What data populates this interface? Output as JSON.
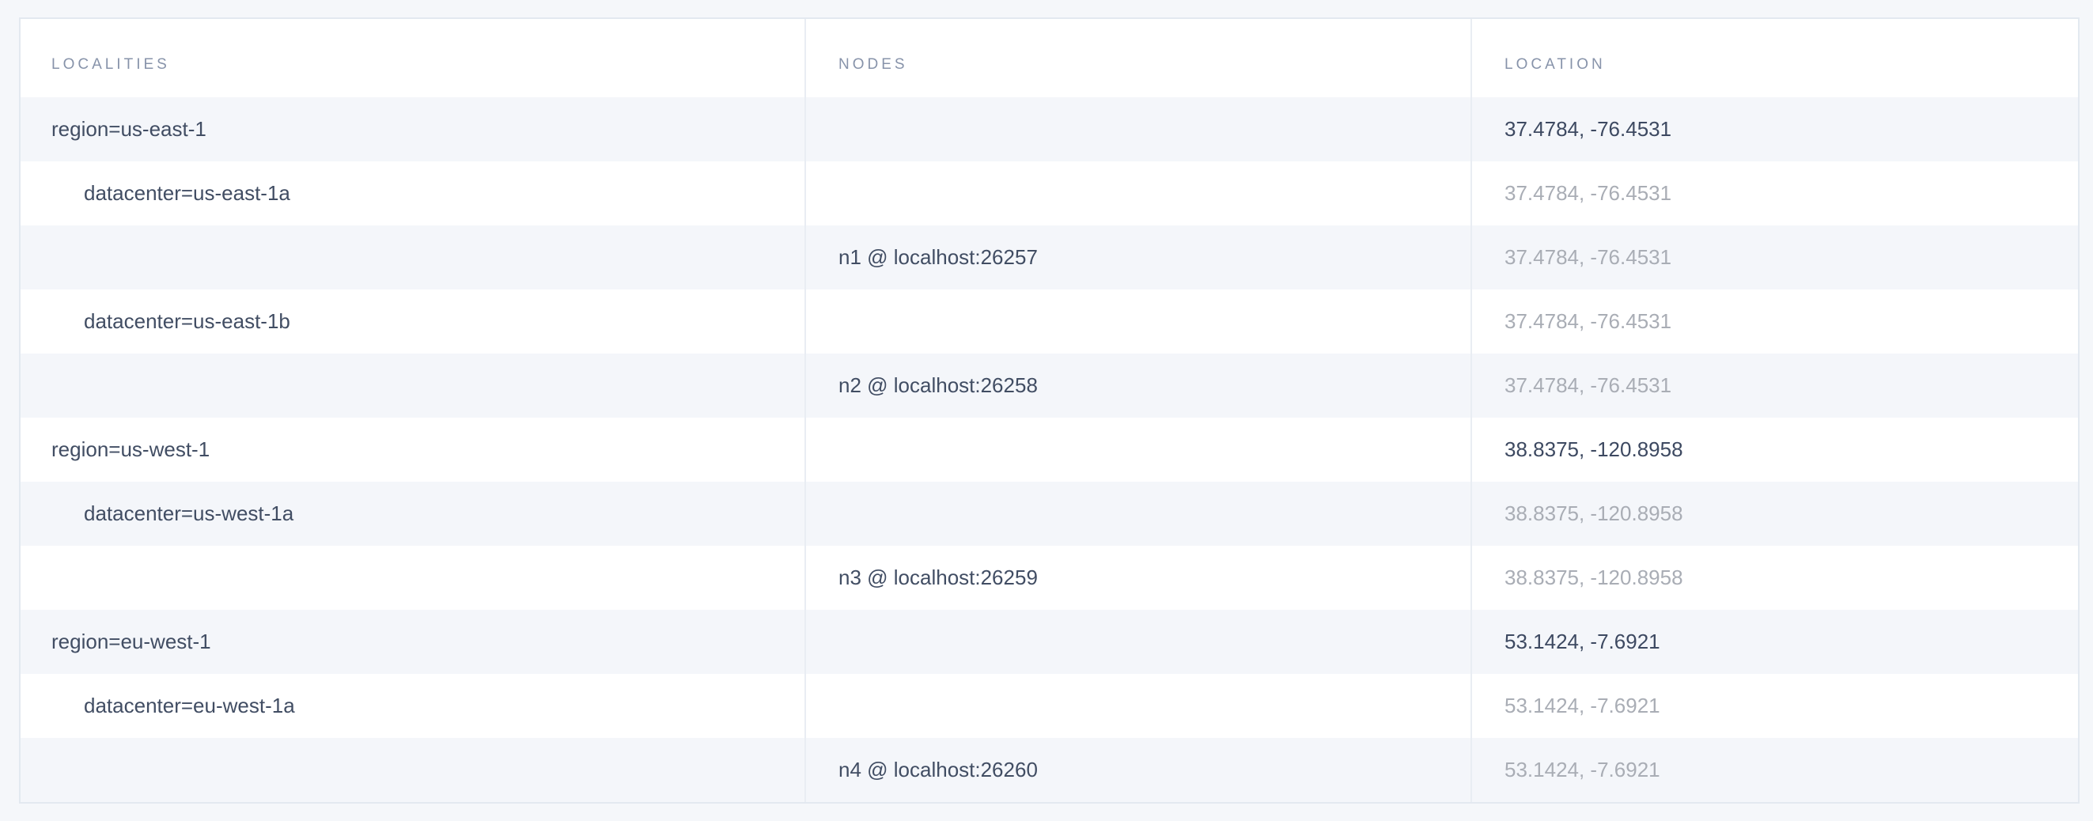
{
  "table": {
    "columns": [
      {
        "key": "localities",
        "label": "LOCALITIES"
      },
      {
        "key": "nodes",
        "label": "NODES"
      },
      {
        "key": "location",
        "label": "LOCATION"
      }
    ],
    "rows": [
      {
        "type": "region",
        "locality": "region=us-east-1",
        "node": "",
        "location": "37.4784, -76.4531",
        "indent": 0,
        "location_muted": false
      },
      {
        "type": "datacenter",
        "locality": "datacenter=us-east-1a",
        "node": "",
        "location": "37.4784, -76.4531",
        "indent": 1,
        "location_muted": true
      },
      {
        "type": "node",
        "locality": "",
        "node": "n1 @ localhost:26257",
        "location": "37.4784, -76.4531",
        "indent": 0,
        "location_muted": true
      },
      {
        "type": "datacenter",
        "locality": "datacenter=us-east-1b",
        "node": "",
        "location": "37.4784, -76.4531",
        "indent": 1,
        "location_muted": true
      },
      {
        "type": "node",
        "locality": "",
        "node": "n2 @ localhost:26258",
        "location": "37.4784, -76.4531",
        "indent": 0,
        "location_muted": true
      },
      {
        "type": "region",
        "locality": "region=us-west-1",
        "node": "",
        "location": "38.8375, -120.8958",
        "indent": 0,
        "location_muted": false
      },
      {
        "type": "datacenter",
        "locality": "datacenter=us-west-1a",
        "node": "",
        "location": "38.8375, -120.8958",
        "indent": 1,
        "location_muted": true
      },
      {
        "type": "node",
        "locality": "",
        "node": "n3 @ localhost:26259",
        "location": "38.8375, -120.8958",
        "indent": 0,
        "location_muted": true
      },
      {
        "type": "region",
        "locality": "region=eu-west-1",
        "node": "",
        "location": "53.1424, -7.6921",
        "indent": 0,
        "location_muted": false
      },
      {
        "type": "datacenter",
        "locality": "datacenter=eu-west-1a",
        "node": "",
        "location": "53.1424, -7.6921",
        "indent": 1,
        "location_muted": true
      },
      {
        "type": "node",
        "locality": "",
        "node": "n4 @ localhost:26260",
        "location": "53.1424, -7.6921",
        "indent": 0,
        "location_muted": true
      }
    ]
  },
  "colors": {
    "page_background": "#f5f7fa",
    "row_stripe": "#f4f6fa",
    "row_white": "#ffffff",
    "border": "#e3e9f0",
    "text_primary": "#414d63",
    "text_location_dark": "#3d4961",
    "text_muted": "#a9adb5",
    "header_text": "#8793aa"
  }
}
